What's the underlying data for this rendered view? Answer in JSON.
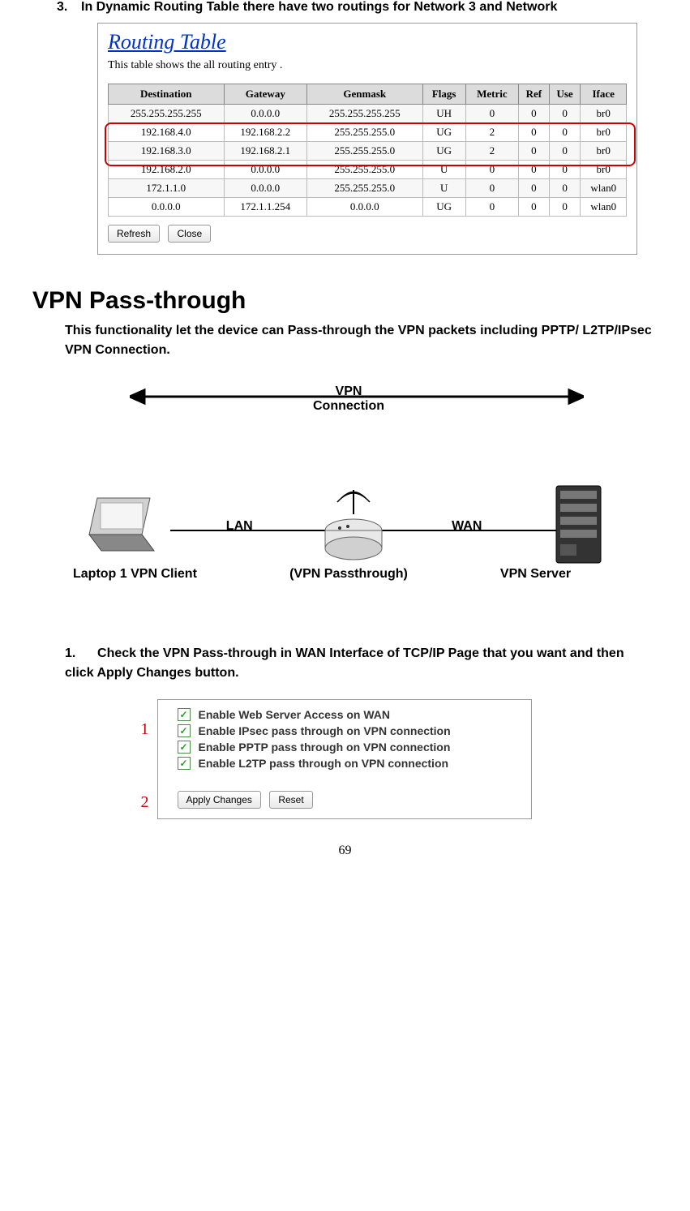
{
  "intro": {
    "number": "3.",
    "text": "In Dynamic Routing Table there have two routings for Network 3 and Network"
  },
  "routingTable": {
    "title": "Routing Table",
    "subtitle": "This table shows the all routing entry .",
    "columns": [
      "Destination",
      "Gateway",
      "Genmask",
      "Flags",
      "Metric",
      "Ref",
      "Use",
      "Iface"
    ],
    "rows": [
      [
        "255.255.255.255",
        "0.0.0.0",
        "255.255.255.255",
        "UH",
        "0",
        "0",
        "0",
        "br0"
      ],
      [
        "192.168.4.0",
        "192.168.2.2",
        "255.255.255.0",
        "UG",
        "2",
        "0",
        "0",
        "br0"
      ],
      [
        "192.168.3.0",
        "192.168.2.1",
        "255.255.255.0",
        "UG",
        "2",
        "0",
        "0",
        "br0"
      ],
      [
        "192.168.2.0",
        "0.0.0.0",
        "255.255.255.0",
        "U",
        "0",
        "0",
        "0",
        "br0"
      ],
      [
        "172.1.1.0",
        "0.0.0.0",
        "255.255.255.0",
        "U",
        "0",
        "0",
        "0",
        "wlan0"
      ],
      [
        "0.0.0.0",
        "172.1.1.254",
        "0.0.0.0",
        "UG",
        "0",
        "0",
        "0",
        "wlan0"
      ]
    ],
    "highlightRows": [
      1,
      2
    ],
    "highlightColor": "#cc0000",
    "buttons": [
      "Refresh",
      "Close"
    ],
    "headerBg": "#dcdcdc",
    "borderColor": "#888888"
  },
  "section": {
    "heading": "VPN Pass-through",
    "body": "This functionality let the device can Pass-through the VPN packets including PPTP/ L2TP/IPsec VPN Connection."
  },
  "diagram": {
    "topLabel1": "VPN",
    "topLabel2": "Connection",
    "lan": "LAN",
    "wan": "WAN",
    "laptop": "Laptop 1 VPN Client",
    "router": "(VPN Passthrough)",
    "server": "VPN Server"
  },
  "step": {
    "number": "1.",
    "text": "Check the VPN Pass-through in WAN Interface of TCP/IP Page that you want and then click Apply Changes button."
  },
  "settings": {
    "options": [
      "Enable Web Server Access on WAN",
      "Enable IPsec pass through on VPN connection",
      "Enable PPTP pass through on VPN connection",
      "Enable L2TP pass through on VPN connection"
    ],
    "checked": [
      true,
      true,
      true,
      true
    ],
    "annotation1": "1",
    "annotation2": "2",
    "applyBtn": "Apply Changes",
    "resetBtn": "Reset"
  },
  "pageNumber": "69"
}
